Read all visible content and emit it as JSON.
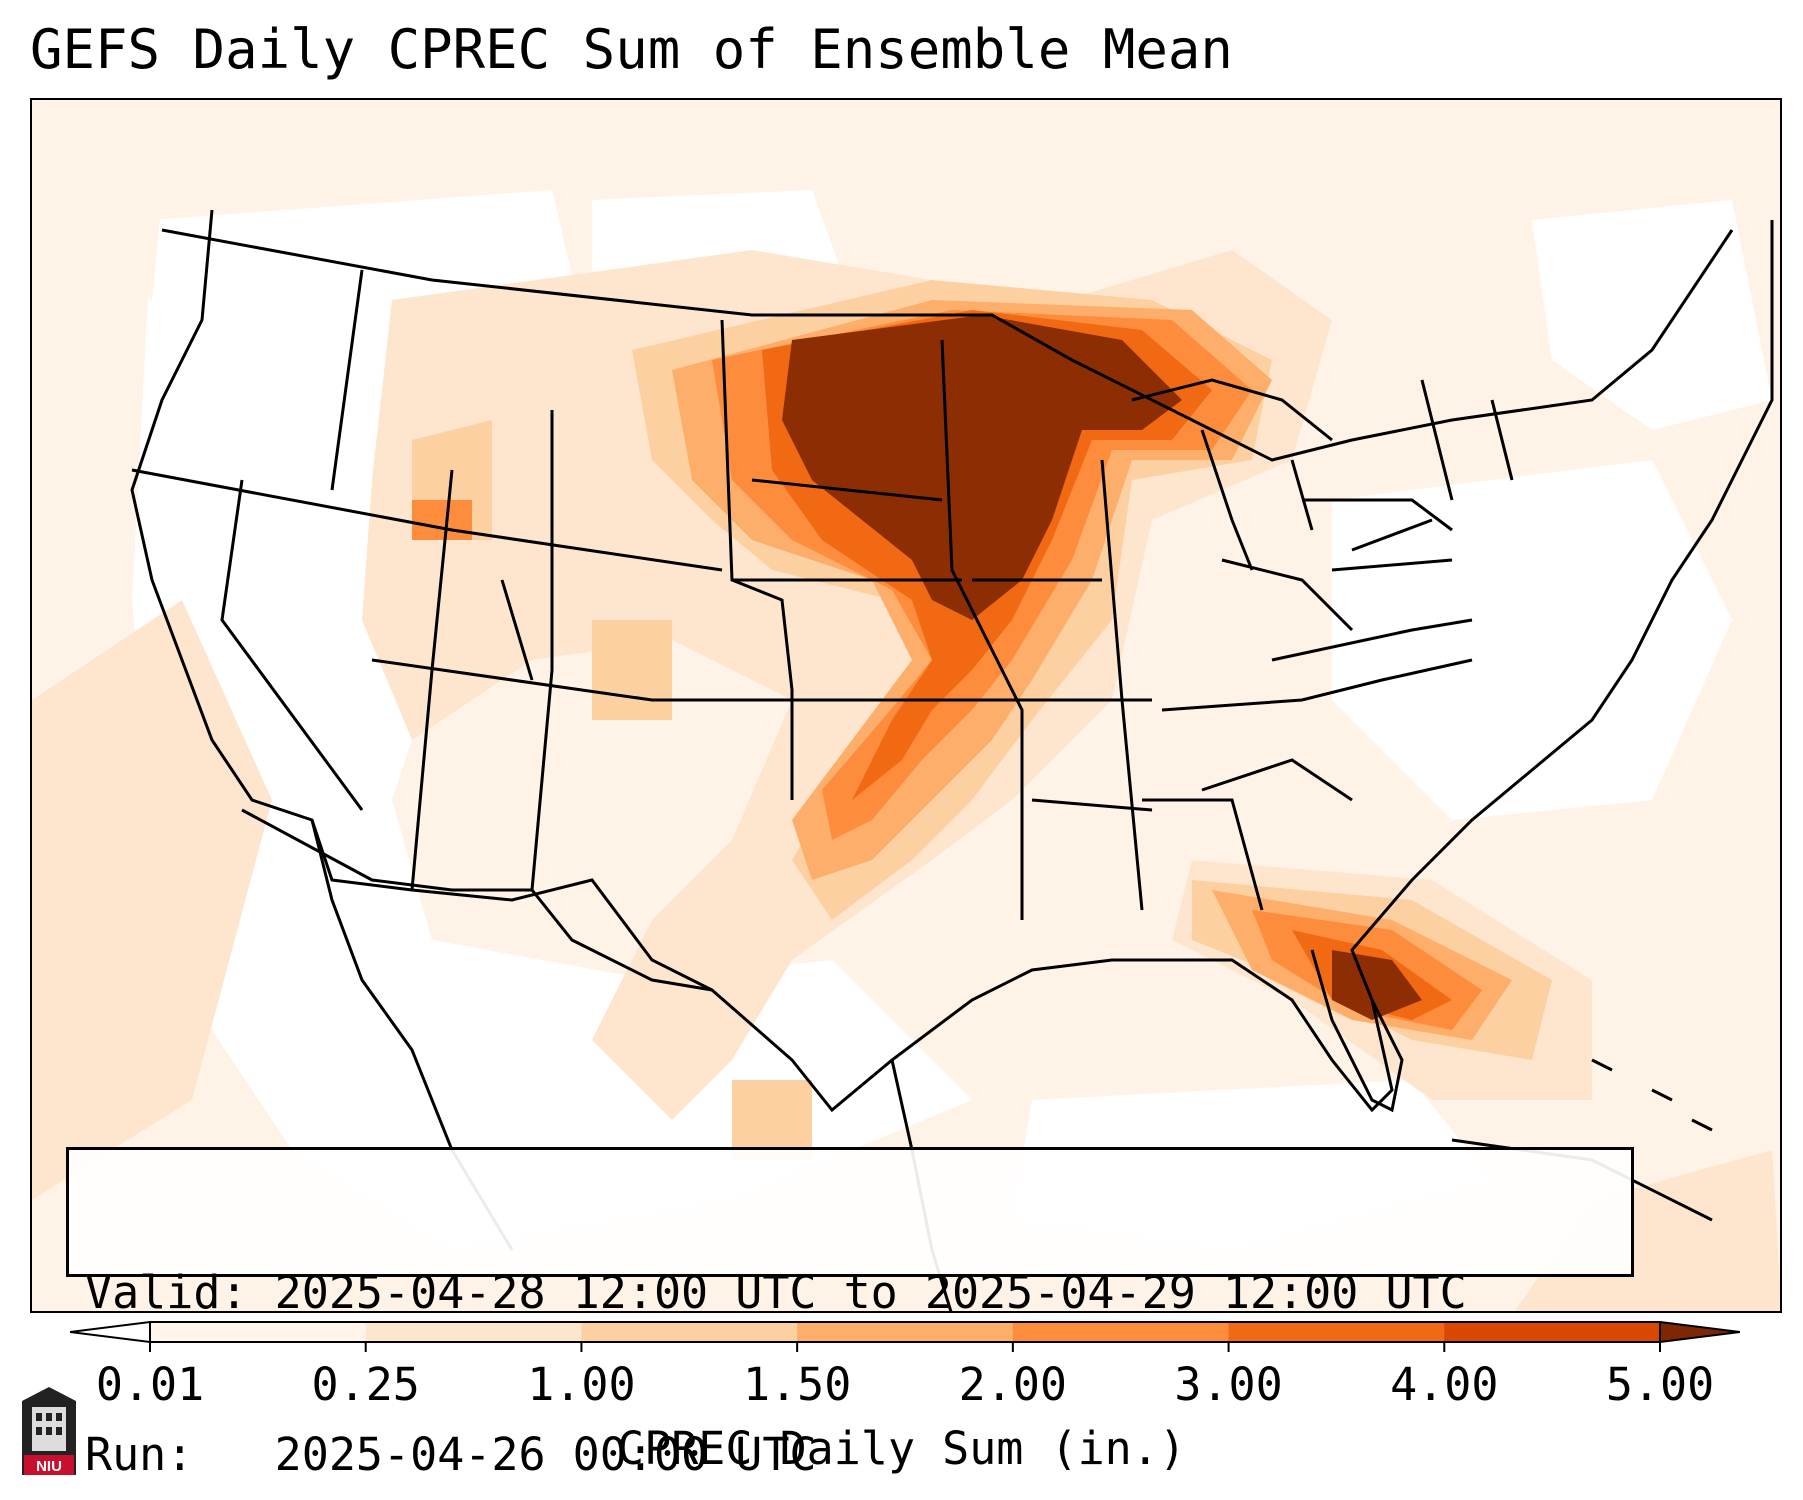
{
  "title": "GEFS Daily CPREC Sum of Ensemble Mean",
  "info": {
    "valid_label": "Valid:",
    "valid_value": "2025-04-28 12:00 UTC to 2025-04-29 12:00 UTC",
    "run_label": "Run:",
    "run_value": "2025-04-26 00:00 UTC"
  },
  "colorbar": {
    "label": "CPREC Daily Sum (in.)",
    "ticks": [
      "0.01",
      "0.25",
      "1.00",
      "1.50",
      "2.00",
      "3.00",
      "4.00",
      "5.00"
    ],
    "colors": [
      "#fff5eb",
      "#fee6ce",
      "#fdd0a2",
      "#fdae6b",
      "#fd8d3c",
      "#f16913",
      "#d94801",
      "#8c2d04"
    ],
    "under_color": "#ffffff",
    "over_color": "#7f2704"
  },
  "logo": {
    "text": "NIU",
    "color": "#c8102e"
  }
}
